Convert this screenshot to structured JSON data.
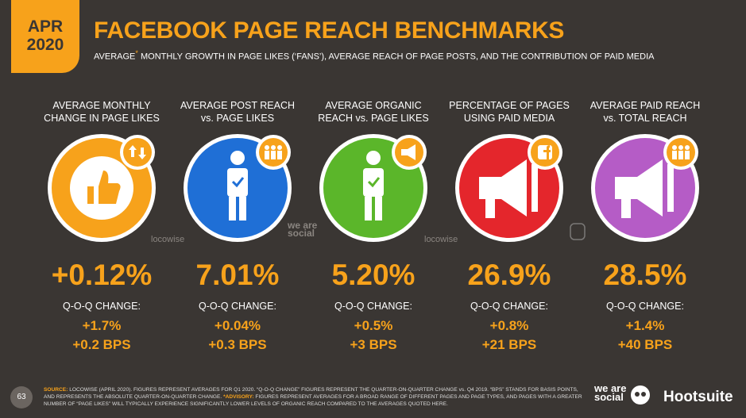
{
  "header": {
    "date": [
      "APR",
      "2020"
    ],
    "title": "FACEBOOK PAGE REACH BENCHMARKS",
    "subtitle_start": "AVERAGE",
    "subtitle_mark": "*",
    "subtitle_end": "MONTHLY GROWTH IN PAGE LIKES (‘FANS’), AVERAGE REACH OF PAGE POSTS, AND THE CONTRIBUTION OF PAID MEDIA"
  },
  "metrics": [
    {
      "label": [
        "AVERAGE MONTHLY",
        "CHANGE IN PAGE LIKES"
      ],
      "value": "+0.12%",
      "change_label": "Q-O-Q CHANGE:",
      "change": "+1.7%",
      "bps": "+0.2 BPS",
      "color": "#f7a21b"
    },
    {
      "label": [
        "AVERAGE POST REACH",
        "vs. PAGE LIKES"
      ],
      "value": "7.01%",
      "change_label": "Q-O-Q CHANGE:",
      "change": "+0.04%",
      "bps": "+0.3 BPS",
      "color": "#1f6fd6"
    },
    {
      "label": [
        "AVERAGE ORGANIC",
        "REACH vs. PAGE LIKES"
      ],
      "value": "5.20%",
      "change_label": "Q-O-Q CHANGE:",
      "change": "+0.5%",
      "bps": "+3 BPS",
      "color": "#5bb62a"
    },
    {
      "label": [
        "PERCENTAGE OF PAGES",
        "USING PAID MEDIA"
      ],
      "value": "26.9%",
      "change_label": "Q-O-Q CHANGE:",
      "change": "+0.8%",
      "bps": "+21 BPS",
      "color": "#e4262c"
    },
    {
      "label": [
        "AVERAGE PAID REACH",
        "vs. TOTAL REACH"
      ],
      "value": "28.5%",
      "change_label": "Q-O-Q CHANGE:",
      "change": "+1.4%",
      "bps": "+40 BPS",
      "color": "#b55cc6"
    }
  ],
  "watermarks": [
    "locowise",
    "we are social",
    "locowise"
  ],
  "footer": {
    "page": "63",
    "source_label": "SOURCE:",
    "source_text": "LOCOWISE (APRIL 2020). FIGURES REPRESENT AVERAGES FOR Q1 2020. “Q-O-Q CHANGE” FIGURES REPRESENT THE QUARTER-ON-QUARTER CHANGE vs. Q4 2019. “BPS” STANDS FOR BASIS POINTS, AND REPRESENTS THE ABSOLUTE QUARTER-ON-QUARTER CHANGE.",
    "advisory_label": "*ADVISORY:",
    "advisory_text": "FIGURES REPRESENT AVERAGES FOR A BROAD RANGE OF DIFFERENT PAGES AND PAGE TYPES, AND PAGES WITH A GREATER NUMBER OF “PAGE LIKES” WILL TYPICALLY EXPERIENCE SIGNIFICANTLY LOWER LEVELS OF ORGANIC REACH COMPARED TO THE AVERAGES QUOTED HERE.",
    "brand_1": "we are social",
    "brand_2": "Hootsuite"
  }
}
